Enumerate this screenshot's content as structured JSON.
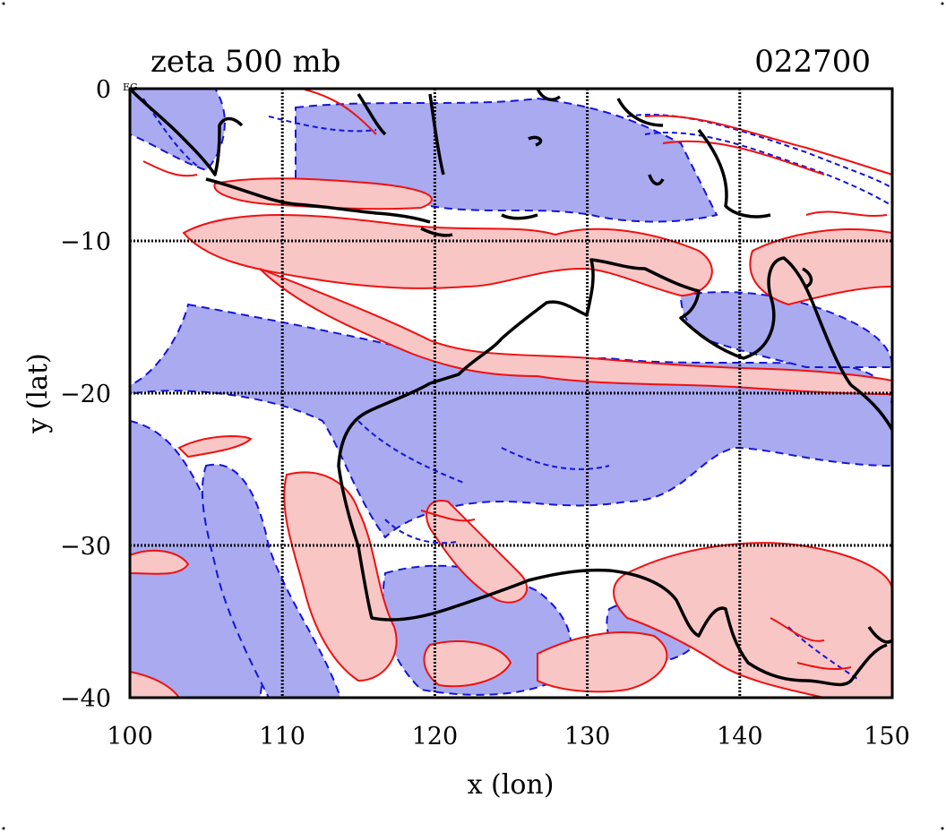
{
  "title": "zeta 500 mb",
  "date_code": "022700",
  "corner_tag": "EG",
  "x_axis": {
    "label": "x (lon)",
    "ticks": [
      "100",
      "110",
      "120",
      "130",
      "140",
      "150"
    ]
  },
  "y_axis": {
    "label": "y (lat)",
    "ticks": [
      "0",
      "−10",
      "−20",
      "−30",
      "−40"
    ]
  },
  "chart_data": {
    "type": "contour-map",
    "variable": "zeta 500 mb",
    "xlim": [
      100,
      150
    ],
    "ylim": [
      -40,
      0
    ],
    "grid": true,
    "colors": {
      "positive_fill": "#f9c6c6",
      "positive_line": "#ee1111",
      "negative_fill": "#a9aaf0",
      "negative_line": "#1414d8",
      "coastline": "#000000"
    }
  }
}
